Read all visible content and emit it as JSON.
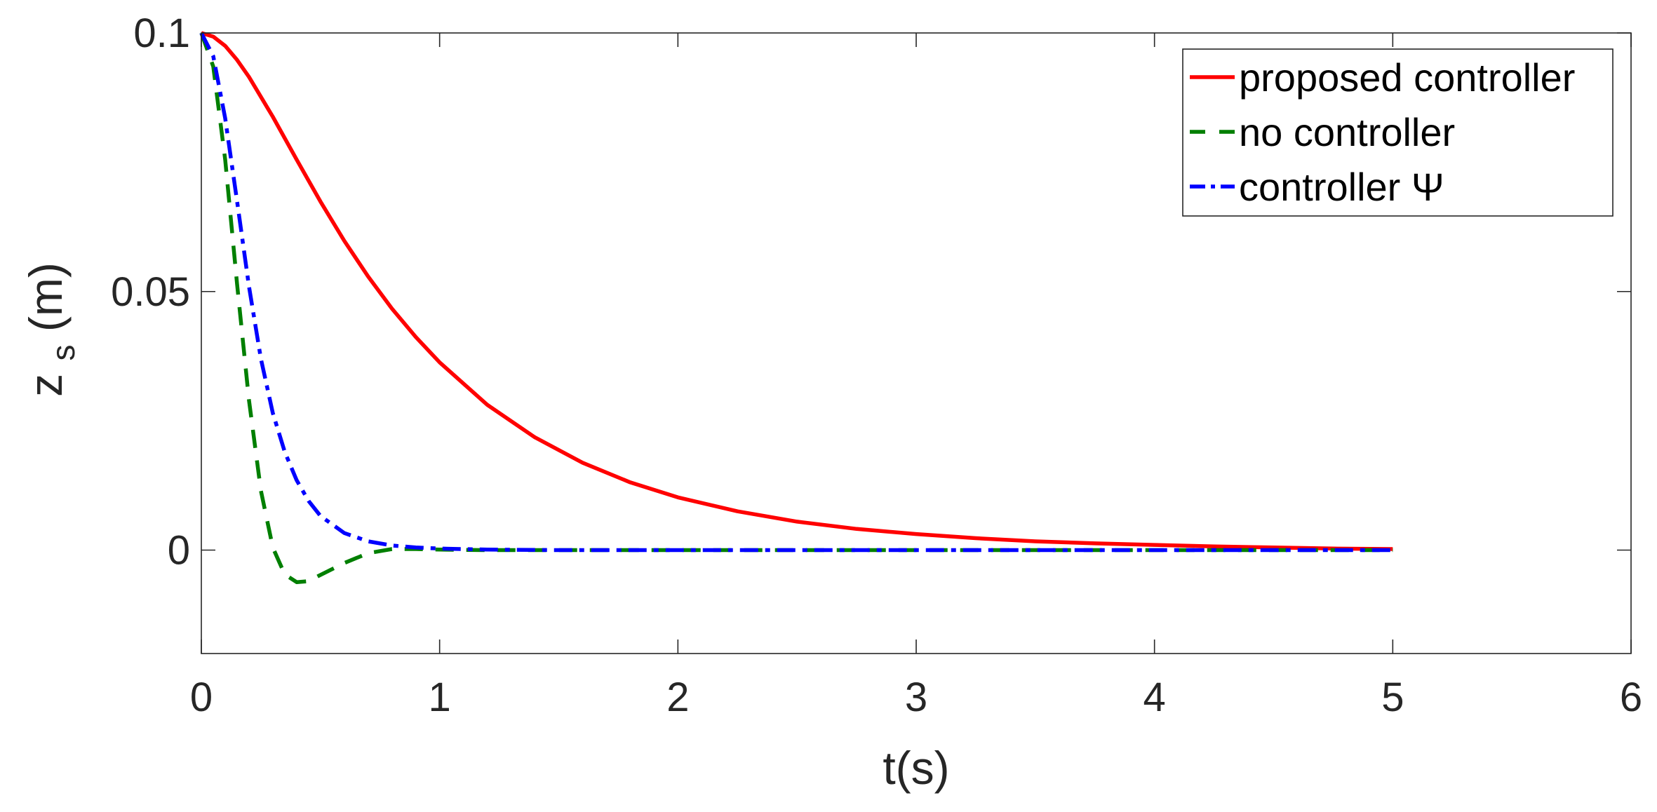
{
  "chart_data": {
    "type": "line",
    "title": "",
    "xlabel": "t(s)",
    "ylabel_main": "z",
    "ylabel_sub": "s",
    "ylabel_unit": "(m)",
    "xlim": [
      0,
      6
    ],
    "ylim": [
      -0.02,
      0.1
    ],
    "x_ticks": [
      0,
      1,
      2,
      3,
      4,
      5,
      6
    ],
    "x_tick_labels": [
      "0",
      "1",
      "2",
      "3",
      "4",
      "5",
      "6"
    ],
    "y_ticks": [
      0,
      0.05,
      0.1
    ],
    "y_tick_labels": [
      "0",
      "0.05",
      "0.1"
    ],
    "grid": false,
    "legend_position": "top-right",
    "series": [
      {
        "name": "proposed controller",
        "color": "#ff0000",
        "style": "solid",
        "x": [
          0,
          0.05,
          0.1,
          0.15,
          0.2,
          0.3,
          0.4,
          0.5,
          0.6,
          0.7,
          0.8,
          0.9,
          1.0,
          1.2,
          1.4,
          1.6,
          1.8,
          2.0,
          2.25,
          2.5,
          2.75,
          3.0,
          3.25,
          3.5,
          3.75,
          4.0,
          4.25,
          4.5,
          4.75,
          5.0
        ],
        "y": [
          0.1,
          0.0993,
          0.0975,
          0.0948,
          0.0915,
          0.0838,
          0.0755,
          0.0674,
          0.0598,
          0.0529,
          0.0467,
          0.0412,
          0.0363,
          0.0281,
          0.0218,
          0.0169,
          0.0131,
          0.0102,
          0.0075,
          0.0055,
          0.0041,
          0.0031,
          0.0023,
          0.0017,
          0.0013,
          0.001,
          0.0007,
          0.0005,
          0.0003,
          0.0002
        ]
      },
      {
        "name": "no controller",
        "color": "#007f00",
        "style": "dashed",
        "x": [
          0,
          0.05,
          0.1,
          0.15,
          0.2,
          0.25,
          0.3,
          0.35,
          0.4,
          0.45,
          0.5,
          0.6,
          0.7,
          0.8,
          0.9,
          1.0,
          1.2,
          1.5,
          2.0,
          3.0,
          4.0,
          5.0
        ],
        "y": [
          0.1,
          0.0935,
          0.0755,
          0.0515,
          0.029,
          0.0115,
          0.0005,
          -0.0047,
          -0.0062,
          -0.006,
          -0.0048,
          -0.0025,
          -0.0006,
          0.0002,
          0.0002,
          0.0001,
          0,
          0,
          0,
          0,
          0,
          0
        ]
      },
      {
        "name": "controller Ψ",
        "color": "#0000ff",
        "style": "dashdot",
        "x": [
          0,
          0.05,
          0.1,
          0.15,
          0.2,
          0.25,
          0.3,
          0.35,
          0.4,
          0.45,
          0.5,
          0.6,
          0.7,
          0.8,
          0.9,
          1.0,
          1.2,
          1.5,
          2.0,
          3.0,
          4.0,
          5.0
        ],
        "y": [
          0.1,
          0.0955,
          0.0835,
          0.0675,
          0.051,
          0.037,
          0.0265,
          0.019,
          0.0135,
          0.0095,
          0.0066,
          0.0033,
          0.0017,
          0.0009,
          0.0005,
          0.0003,
          0.0001,
          0,
          0,
          0,
          0,
          0
        ]
      }
    ]
  }
}
